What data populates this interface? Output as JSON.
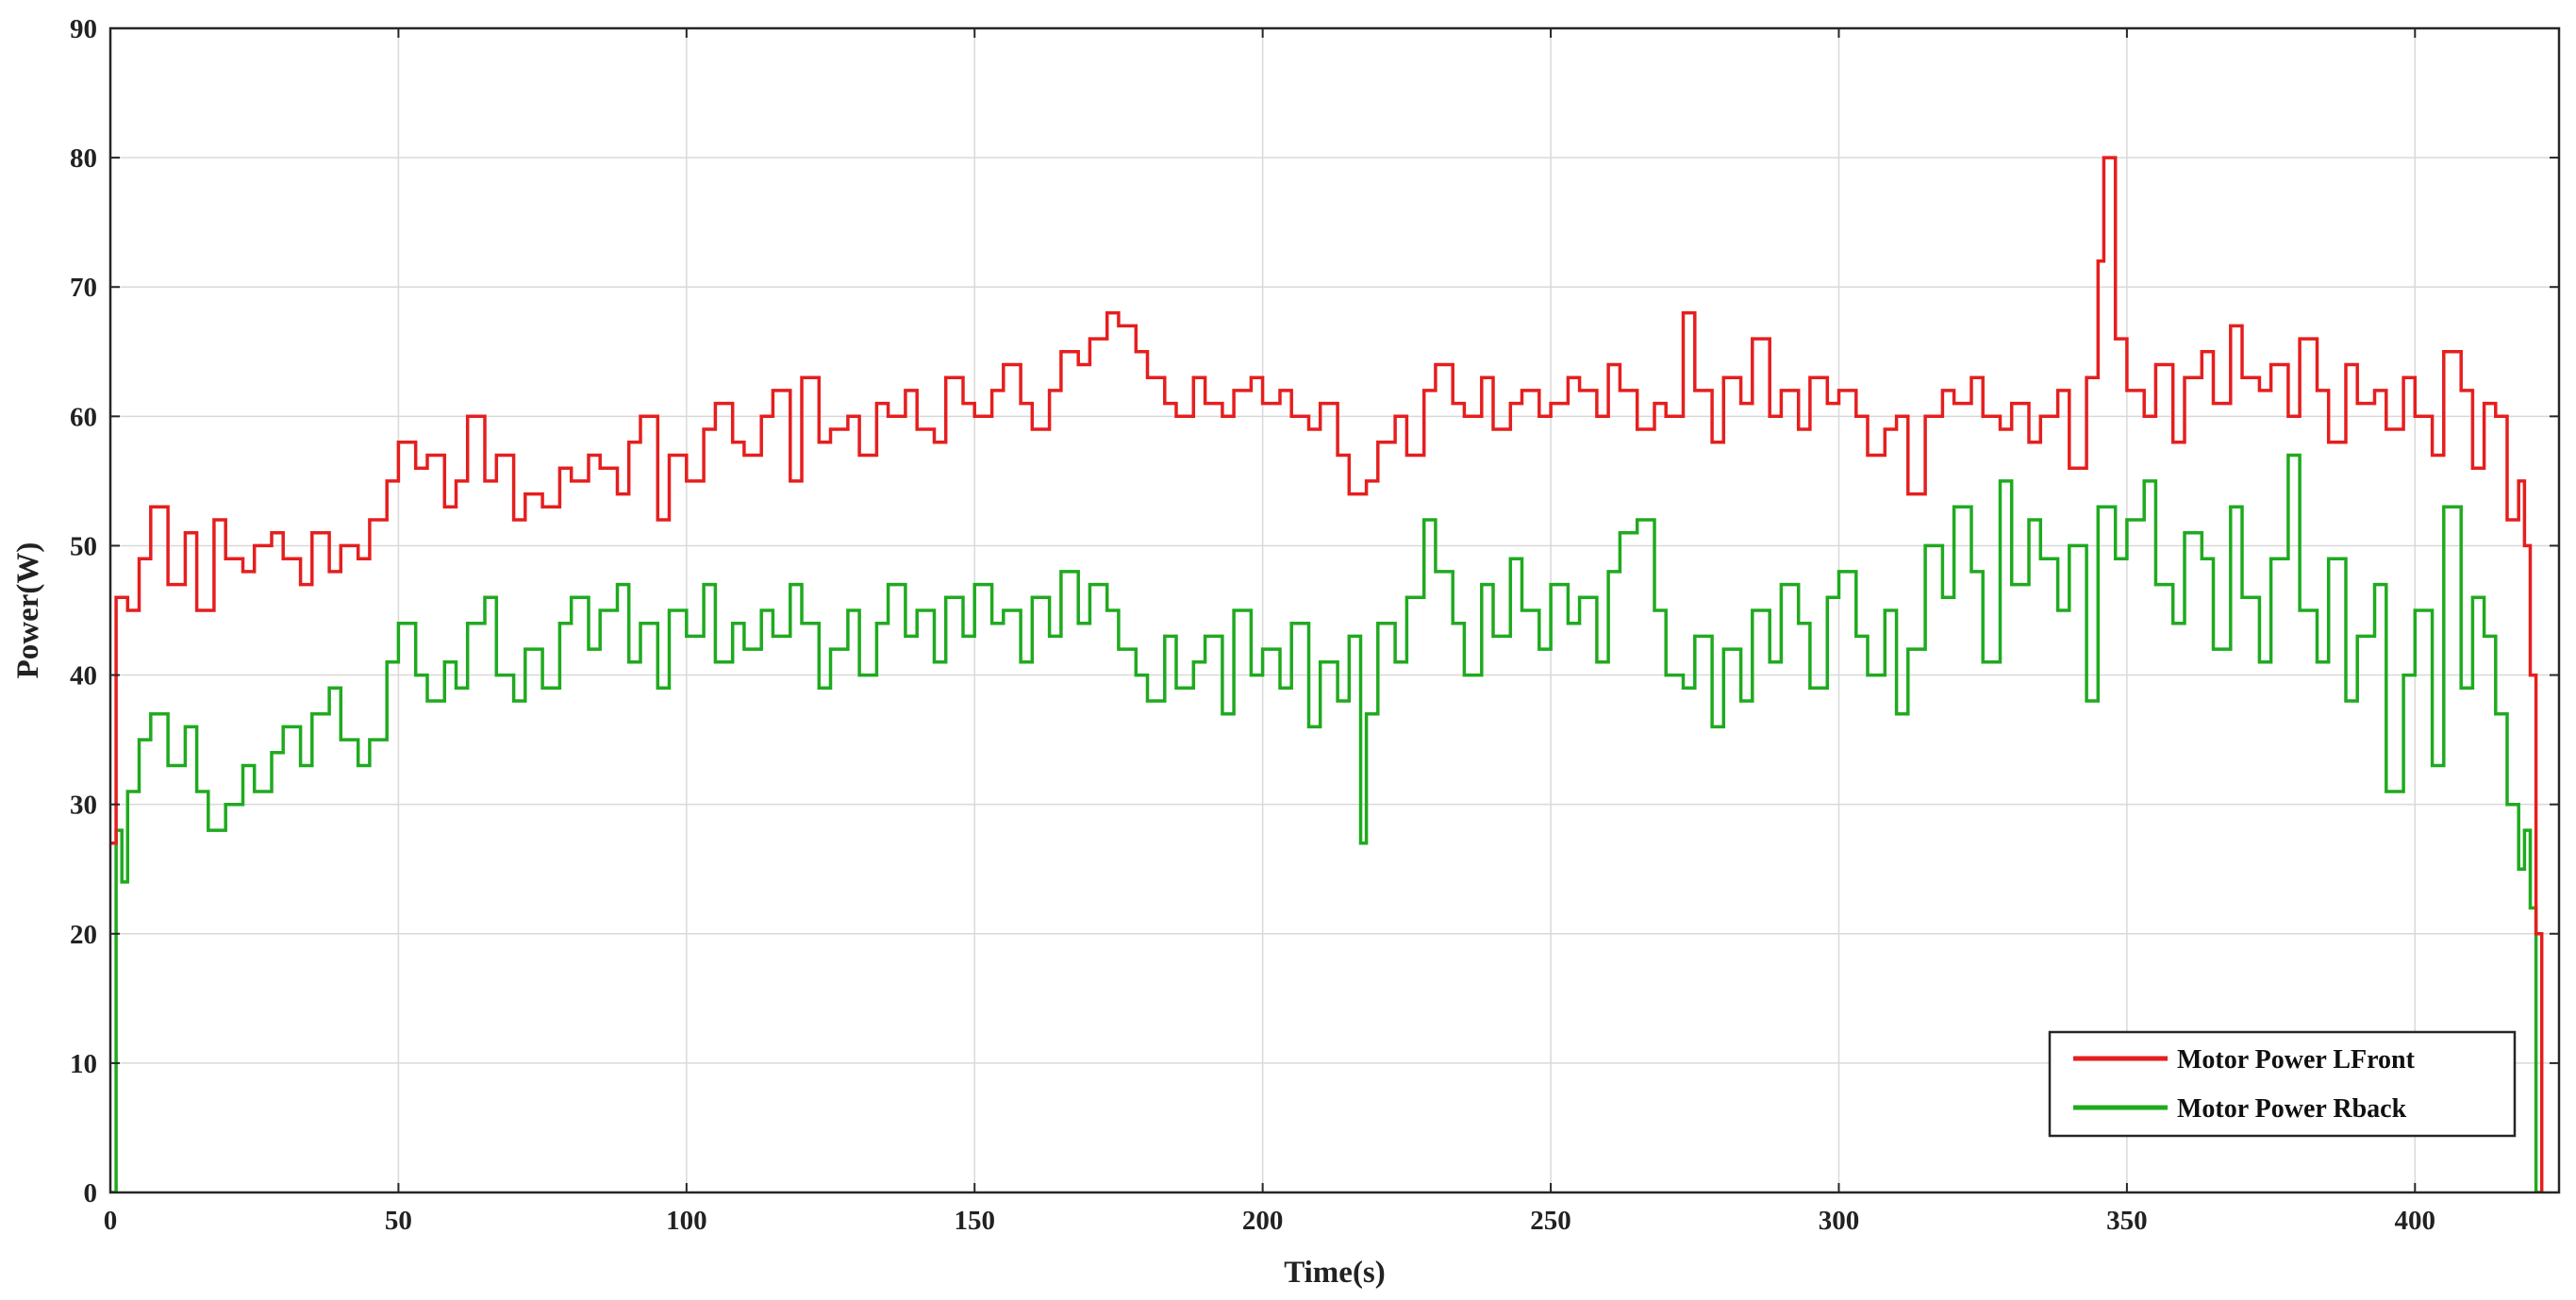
{
  "chart_data": {
    "type": "line",
    "xlabel": "Time(s)",
    "ylabel": "Power(W)",
    "xlim": [
      0,
      425
    ],
    "ylim": [
      0,
      90
    ],
    "x_ticks": [
      0,
      50,
      100,
      150,
      200,
      250,
      300,
      350,
      400
    ],
    "y_ticks": [
      0,
      10,
      20,
      30,
      40,
      50,
      60,
      70,
      80,
      90
    ],
    "grid": true,
    "legend_position": "bottom-right",
    "series": [
      {
        "name": "Motor Power LFront",
        "color": "#e61e1e",
        "x": [
          0,
          1,
          3,
          5,
          7,
          10,
          13,
          15,
          18,
          20,
          23,
          25,
          28,
          30,
          33,
          35,
          38,
          40,
          43,
          45,
          48,
          50,
          53,
          55,
          58,
          60,
          62,
          65,
          67,
          70,
          72,
          75,
          78,
          80,
          83,
          85,
          88,
          90,
          92,
          95,
          97,
          100,
          103,
          105,
          108,
          110,
          113,
          115,
          118,
          120,
          123,
          125,
          128,
          130,
          133,
          135,
          138,
          140,
          143,
          145,
          148,
          150,
          153,
          155,
          158,
          160,
          163,
          165,
          168,
          170,
          173,
          175,
          178,
          180,
          183,
          185,
          188,
          190,
          193,
          195,
          198,
          200,
          203,
          205,
          208,
          210,
          213,
          215,
          218,
          220,
          223,
          225,
          228,
          230,
          233,
          235,
          238,
          240,
          243,
          245,
          248,
          250,
          253,
          255,
          258,
          260,
          262,
          265,
          268,
          270,
          273,
          275,
          278,
          280,
          283,
          285,
          288,
          290,
          293,
          295,
          298,
          300,
          303,
          305,
          308,
          310,
          312,
          315,
          318,
          320,
          323,
          325,
          328,
          330,
          333,
          335,
          338,
          340,
          343,
          345,
          346,
          348,
          350,
          353,
          355,
          358,
          360,
          363,
          365,
          368,
          370,
          373,
          375,
          378,
          380,
          383,
          385,
          388,
          390,
          393,
          395,
          398,
          400,
          403,
          405,
          408,
          410,
          412,
          414,
          416,
          418,
          419,
          420,
          421,
          422
        ],
        "values": [
          27,
          46,
          45,
          49,
          53,
          47,
          51,
          45,
          52,
          49,
          48,
          50,
          51,
          49,
          47,
          51,
          48,
          50,
          49,
          52,
          55,
          58,
          56,
          57,
          53,
          55,
          60,
          55,
          57,
          52,
          54,
          53,
          56,
          55,
          57,
          56,
          54,
          58,
          60,
          52,
          57,
          55,
          59,
          61,
          58,
          57,
          60,
          62,
          55,
          63,
          58,
          59,
          60,
          57,
          61,
          60,
          62,
          59,
          58,
          63,
          61,
          60,
          62,
          64,
          61,
          59,
          62,
          65,
          64,
          66,
          68,
          67,
          65,
          63,
          61,
          60,
          63,
          61,
          60,
          62,
          63,
          61,
          62,
          60,
          59,
          61,
          57,
          54,
          55,
          58,
          60,
          57,
          62,
          64,
          61,
          60,
          63,
          59,
          61,
          62,
          60,
          61,
          63,
          62,
          60,
          64,
          62,
          59,
          61,
          60,
          68,
          62,
          58,
          63,
          61,
          66,
          60,
          62,
          59,
          63,
          61,
          62,
          60,
          57,
          59,
          60,
          54,
          60,
          62,
          61,
          63,
          60,
          59,
          61,
          58,
          60,
          62,
          56,
          63,
          72,
          80,
          66,
          62,
          60,
          64,
          58,
          63,
          65,
          61,
          67,
          63,
          62,
          64,
          60,
          66,
          62,
          58,
          64,
          61,
          62,
          59,
          63,
          60,
          57,
          65,
          62,
          56,
          61,
          60,
          52,
          55,
          50,
          40,
          20,
          0
        ]
      },
      {
        "name": "Motor Power Rback",
        "color": "#1faa1f",
        "x": [
          0,
          1,
          2,
          3,
          5,
          7,
          10,
          13,
          15,
          17,
          20,
          23,
          25,
          28,
          30,
          33,
          35,
          38,
          40,
          43,
          45,
          48,
          50,
          53,
          55,
          58,
          60,
          62,
          65,
          67,
          70,
          72,
          75,
          78,
          80,
          83,
          85,
          88,
          90,
          92,
          95,
          97,
          100,
          103,
          105,
          108,
          110,
          113,
          115,
          118,
          120,
          123,
          125,
          128,
          130,
          133,
          135,
          138,
          140,
          143,
          145,
          148,
          150,
          153,
          155,
          158,
          160,
          163,
          165,
          168,
          170,
          173,
          175,
          178,
          180,
          183,
          185,
          188,
          190,
          193,
          195,
          198,
          200,
          203,
          205,
          208,
          210,
          213,
          215,
          217,
          218,
          220,
          223,
          225,
          228,
          230,
          233,
          235,
          238,
          240,
          243,
          245,
          248,
          250,
          253,
          255,
          258,
          260,
          262,
          265,
          268,
          270,
          273,
          275,
          278,
          280,
          283,
          285,
          288,
          290,
          293,
          295,
          298,
          300,
          303,
          305,
          308,
          310,
          312,
          315,
          318,
          320,
          323,
          325,
          328,
          330,
          333,
          335,
          338,
          340,
          343,
          345,
          348,
          350,
          353,
          355,
          358,
          360,
          363,
          365,
          368,
          370,
          373,
          375,
          378,
          380,
          383,
          385,
          388,
          390,
          393,
          395,
          398,
          400,
          403,
          405,
          408,
          410,
          412,
          414,
          416,
          418,
          419,
          420,
          421,
          422
        ],
        "values": [
          0,
          28,
          24,
          31,
          35,
          37,
          33,
          36,
          31,
          28,
          30,
          33,
          31,
          34,
          36,
          33,
          37,
          39,
          35,
          33,
          35,
          41,
          44,
          40,
          38,
          41,
          39,
          44,
          46,
          40,
          38,
          42,
          39,
          44,
          46,
          42,
          45,
          47,
          41,
          44,
          39,
          45,
          43,
          47,
          41,
          44,
          42,
          45,
          43,
          47,
          44,
          39,
          42,
          45,
          40,
          44,
          47,
          43,
          45,
          41,
          46,
          43,
          47,
          44,
          45,
          41,
          46,
          43,
          48,
          44,
          47,
          45,
          42,
          40,
          38,
          43,
          39,
          41,
          43,
          37,
          45,
          40,
          42,
          39,
          44,
          36,
          41,
          38,
          43,
          27,
          37,
          44,
          41,
          46,
          52,
          48,
          44,
          40,
          47,
          43,
          49,
          45,
          42,
          47,
          44,
          46,
          41,
          48,
          51,
          52,
          45,
          40,
          39,
          43,
          36,
          42,
          38,
          45,
          41,
          47,
          44,
          39,
          46,
          48,
          43,
          40,
          45,
          37,
          42,
          50,
          46,
          53,
          48,
          41,
          55,
          47,
          52,
          49,
          45,
          50,
          38,
          53,
          49,
          52,
          55,
          47,
          44,
          51,
          49,
          42,
          53,
          46,
          41,
          49,
          57,
          45,
          41,
          49,
          38,
          43,
          47,
          31,
          40,
          45,
          33,
          53,
          39,
          46,
          43,
          37,
          30,
          25,
          28,
          22,
          0,
          0
        ]
      }
    ]
  }
}
